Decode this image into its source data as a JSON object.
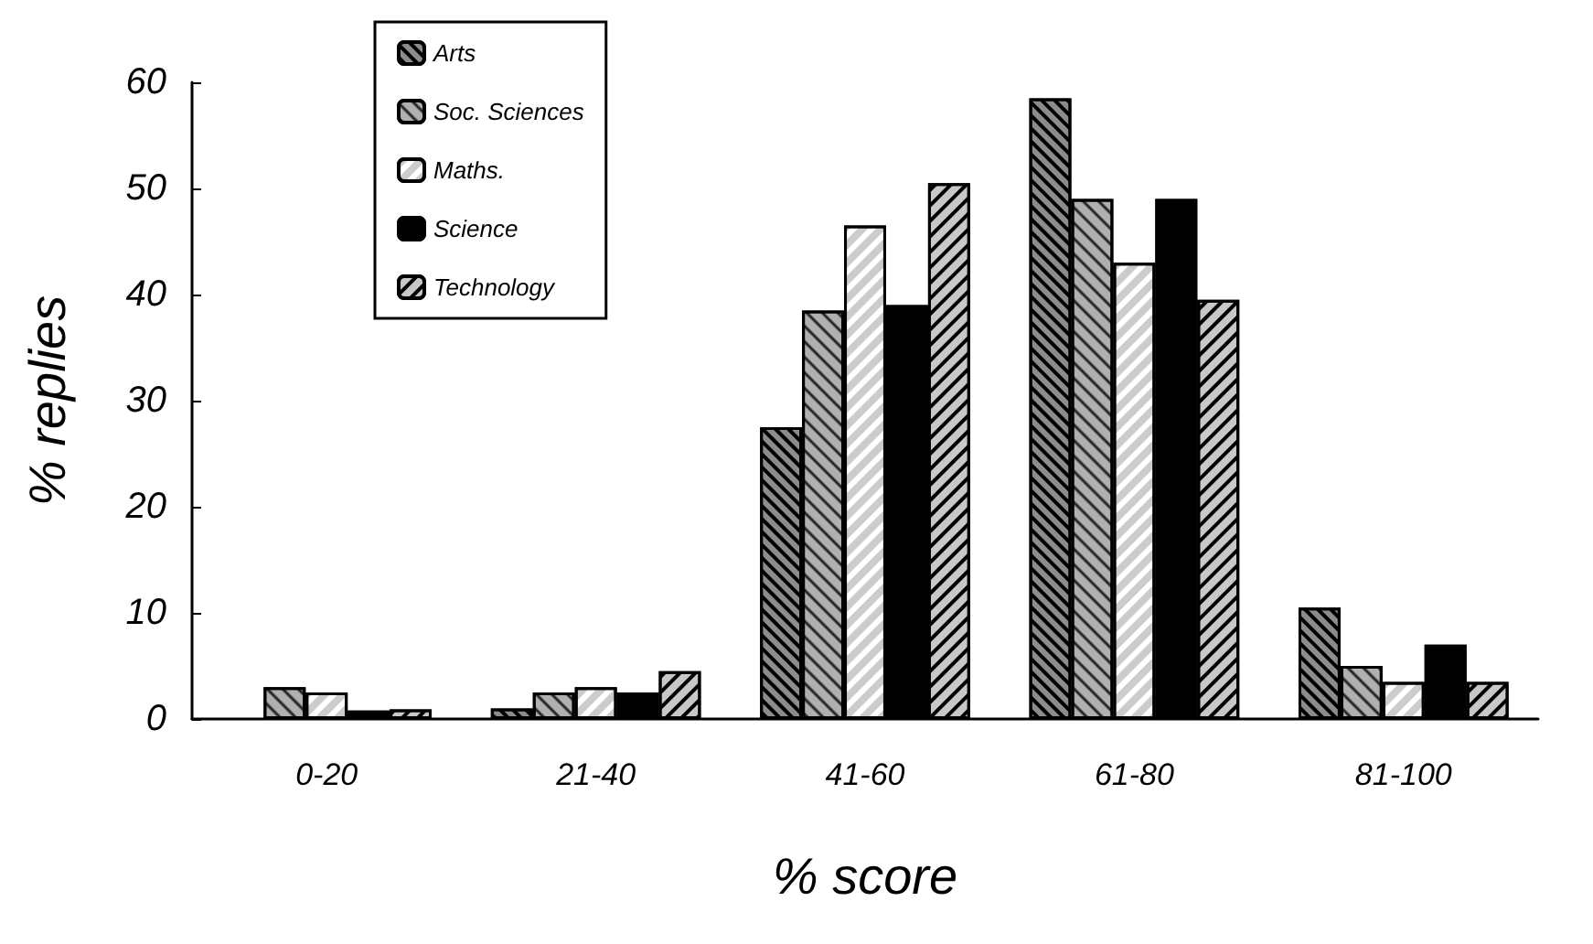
{
  "chart_data": {
    "type": "bar",
    "xlabel": "% score",
    "ylabel": "% replies",
    "categories": [
      "0-20",
      "21-40",
      "41-60",
      "61-80",
      "81-100"
    ],
    "series": [
      {
        "name": "Arts",
        "color": "#8c8c8c",
        "values": [
          null,
          1,
          27.5,
          58.5,
          10.5
        ]
      },
      {
        "name": "Soc. Sciences",
        "color": "#b0b0b0",
        "values": [
          3,
          2.5,
          38.5,
          49,
          5
        ]
      },
      {
        "name": "Maths.",
        "color": "#ffffff",
        "values": [
          2.5,
          3,
          46.5,
          43,
          3.5
        ]
      },
      {
        "name": "Science",
        "color": "#000000",
        "values": [
          0.8,
          2.5,
          39,
          49,
          7
        ]
      },
      {
        "name": "Technology",
        "color": "#c8c8c8",
        "values": [
          0.9,
          4.5,
          50.5,
          39.5,
          3.5
        ]
      }
    ],
    "ylim": [
      0,
      60
    ],
    "yticks": [
      0,
      10,
      20,
      30,
      40,
      50,
      60
    ],
    "grid": false,
    "legend": "top left"
  }
}
